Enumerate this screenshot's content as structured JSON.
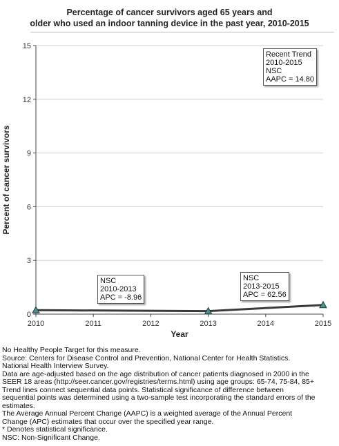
{
  "chart_data": {
    "type": "line",
    "title": [
      "Percentage of cancer survivors aged 65 years and",
      "older who used an indoor tanning device in the past year, 2010-2015"
    ],
    "xlabel": "Year",
    "ylabel": "Percent of cancer survivors",
    "x": [
      2010,
      2011,
      2012,
      2013,
      2014,
      2015
    ],
    "x_ticks": [
      "2010",
      "2011",
      "2012",
      "2013",
      "2014",
      "2015"
    ],
    "y_ticks": [
      "0",
      "3",
      "6",
      "9",
      "12",
      "15"
    ],
    "ylim": [
      0,
      15
    ],
    "xlim": [
      2010,
      2015
    ],
    "grid": true,
    "series": [
      {
        "points": [
          {
            "x": 2010,
            "y": 0.22
          },
          {
            "x": 2013,
            "y": 0.17
          },
          {
            "x": 2015,
            "y": 0.51
          }
        ],
        "color": "#3a3a3a",
        "marker_color": "#4f8f8a"
      }
    ],
    "annotations": [
      {
        "lines": [
          "Recent Trend",
          "2010-2015",
          "NSC",
          "AAPC = 14.80"
        ]
      },
      {
        "lines": [
          "NSC",
          "2010-2013",
          "APC = -8.96"
        ]
      },
      {
        "lines": [
          "NSC",
          "2013-2015",
          "APC = 62.56"
        ]
      }
    ]
  },
  "footnotes": [
    "No Healthy People Target for this measure.",
    "Source: Centers for Disease Control and Prevention, National Center for Health Statistics.",
    "National Health Interview Survey.",
    "Data are age-adjusted based on the age distribution of cancer patients diagnosed in 2000 in the",
    "SEER 18 areas (http://seer.cancer.gov/registries/terms.html) using age groups: 65-74, 75-84, 85+",
    "Trend lines connect sequential data points. Statistical significance of difference between",
    "sequential points was determined using a two-sample test incorporating the standard errors of the",
    "estimates.",
    "The Average Annual Percent Change (AAPC) is a weighted average of the Annual Percent",
    "Change (APC) estimates that occur over the specified year range.",
    "* Denotes statistical significance.",
    "NSC: Non-Significant Change."
  ]
}
